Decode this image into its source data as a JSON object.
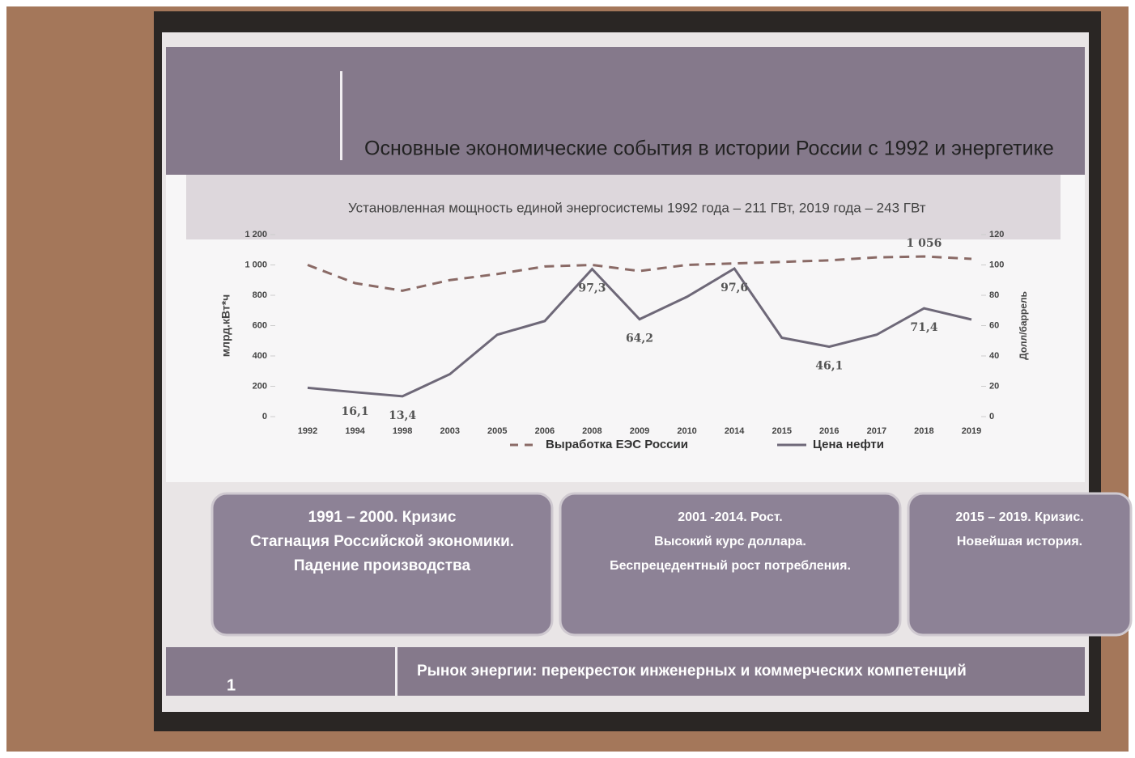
{
  "title": "Основные экономические события в истории России с 1992 и энергетике",
  "subtitle": "Установленная мощность единой энергосистемы 1992 года – 211 ГВт, 2019  года – 243 ГВт",
  "chart_data": {
    "type": "line",
    "ylabel": "млрд.кВт*ч",
    "y2label": "Долл/баррель",
    "categories": [
      "1992",
      "1994",
      "1998",
      "2003",
      "2005",
      "2006",
      "2008",
      "2009",
      "2010",
      "2014",
      "2015",
      "2016",
      "2017",
      "2018",
      "2019"
    ],
    "ylim": [
      0,
      1200
    ],
    "yticks": [
      0,
      200,
      400,
      600,
      800,
      {
        "value": 1000,
        "label": "1 000"
      },
      {
        "value": 1200,
        "label": "1 200"
      }
    ],
    "y2lim": [
      0,
      120
    ],
    "y2ticks": [
      0,
      20,
      40,
      60,
      80,
      100,
      120
    ],
    "series": [
      {
        "name": "Выработка ЕЭС России",
        "color": "#8a6a66",
        "dash": true,
        "values": [
          1000,
          880,
          830,
          900,
          940,
          990,
          1000,
          960,
          1000,
          1010,
          1020,
          1030,
          1050,
          1056,
          1040
        ],
        "value_labels": [
          null,
          null,
          null,
          null,
          null,
          null,
          null,
          null,
          null,
          null,
          null,
          null,
          null,
          "1 056",
          null
        ]
      },
      {
        "name": "Цена нефти",
        "color": "#6e6878",
        "axis": "y2",
        "values": [
          19,
          16.1,
          13.4,
          28,
          54,
          63,
          97.3,
          64.2,
          79,
          97.6,
          52,
          46.1,
          54,
          71.4,
          64
        ],
        "value_labels": [
          null,
          "16,1",
          "13,4",
          null,
          null,
          null,
          "97,3",
          "64,2",
          null,
          "97,6",
          null,
          "46,1",
          null,
          "71,4",
          null
        ]
      }
    ]
  },
  "boxes": [
    {
      "lines": [
        "1991 – 2000. Кризис",
        "Стагнация Российской экономики.",
        "Падение производства"
      ]
    },
    {
      "lines": [
        "2001 -2014. Рост.",
        "Высокий курс доллара.",
        "Беспрецедентный рост потребления."
      ]
    },
    {
      "lines": [
        "2015 – 2019. Кризис.",
        "Новейшая история."
      ]
    }
  ],
  "footer": "Рынок энергии: перекресток инженерных и коммерческих компетенций",
  "page_number": "1"
}
